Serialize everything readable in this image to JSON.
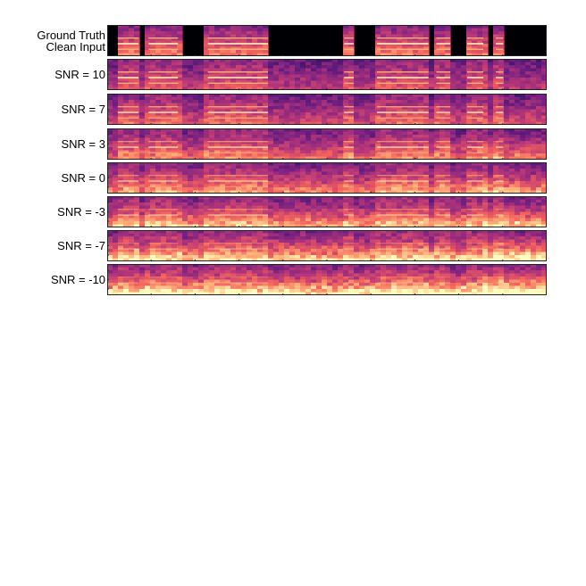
{
  "figure": {
    "rows": [
      {
        "label_lines": [
          "Ground Truth",
          "Clean Input"
        ],
        "kind": "clean",
        "snr": null
      },
      {
        "label_lines": [
          "SNR = 10"
        ],
        "kind": "noisy",
        "snr": 10
      },
      {
        "label_lines": [
          "SNR = 7"
        ],
        "kind": "noisy",
        "snr": 7
      },
      {
        "label_lines": [
          "SNR = 3"
        ],
        "kind": "noisy",
        "snr": 3
      },
      {
        "label_lines": [
          "SNR = 0"
        ],
        "kind": "noisy",
        "snr": 0
      },
      {
        "label_lines": [
          "SNR = -3"
        ],
        "kind": "noisy",
        "snr": -3
      },
      {
        "label_lines": [
          "SNR = -7"
        ],
        "kind": "noisy",
        "snr": -7
      },
      {
        "label_lines": [
          "SNR = -10"
        ],
        "kind": "noisy",
        "snr": -10
      }
    ],
    "colormap": [
      "#000004",
      "#2c115f",
      "#721f81",
      "#b73779",
      "#f1605d",
      "#feb078",
      "#fcfdbf"
    ]
  }
}
